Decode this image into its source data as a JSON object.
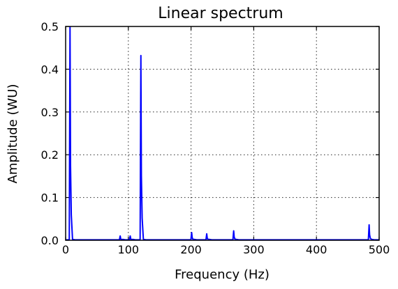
{
  "chart_data": {
    "type": "line",
    "title": "Linear spectrum",
    "xlabel": "Frequency (Hz)",
    "ylabel": "Amplitude (WU)",
    "xlim": [
      0,
      500
    ],
    "ylim": [
      0,
      0.5
    ],
    "xticks": [
      0,
      100,
      200,
      300,
      400,
      500
    ],
    "yticks": [
      0.0,
      0.1,
      0.2,
      0.3,
      0.4,
      0.5
    ],
    "xtick_labels": [
      "0",
      "100",
      "200",
      "300",
      "400",
      "500"
    ],
    "ytick_labels": [
      "0.0",
      "0.1",
      "0.2",
      "0.3",
      "0.4",
      "0.5"
    ],
    "grid": true,
    "series_color": "#0000ff",
    "series": [
      {
        "peaks": [
          {
            "x": 7,
            "y": 0.5
          },
          {
            "x": 87,
            "y": 0.01
          },
          {
            "x": 103,
            "y": 0.01
          },
          {
            "x": 120,
            "y": 0.432
          },
          {
            "x": 201,
            "y": 0.018
          },
          {
            "x": 225,
            "y": 0.015
          },
          {
            "x": 268,
            "y": 0.022
          },
          {
            "x": 484,
            "y": 0.036
          }
        ],
        "baseline": 0.001
      }
    ]
  }
}
